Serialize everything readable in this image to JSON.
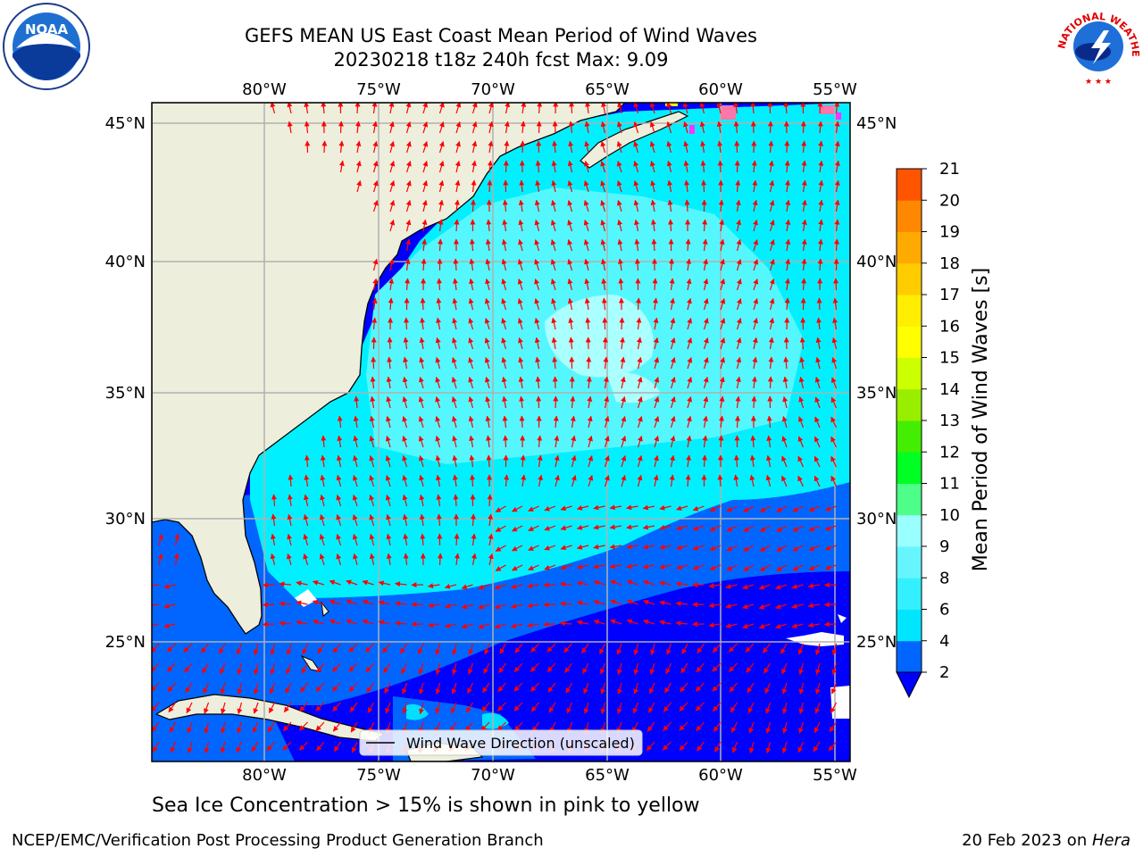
{
  "title_line1": "GEFS MEAN US East Coast Mean Period of Wind Waves",
  "title_line2": "20230218 t18z 240h fcst   Max: 9.09",
  "lon_ticks": [
    "80°W",
    "75°W",
    "70°W",
    "65°W",
    "60°W",
    "55°W"
  ],
  "lat_ticks": [
    "45°N",
    "40°N",
    "35°N",
    "30°N",
    "25°N"
  ],
  "colorbar": {
    "label": "Mean Period of Wind Waves [s]",
    "ticks": [
      "2",
      "4",
      "6",
      "8",
      "9",
      "10",
      "11",
      "12",
      "13",
      "14",
      "15",
      "16",
      "17",
      "18",
      "19",
      "20",
      "21"
    ],
    "colors": [
      "#0066ff",
      "#00e6ff",
      "#33f0ff",
      "#66f5ff",
      "#99ffff",
      "#4dff88",
      "#00ff22",
      "#44ee00",
      "#99ee00",
      "#ccff00",
      "#ffff00",
      "#ffee00",
      "#ffcc00",
      "#ffaa00",
      "#ff8800",
      "#ff5500",
      "#ff2200",
      "#ff0000"
    ],
    "under_color": "#0000ff"
  },
  "legend_label": "Wind Wave Direction (unscaled)",
  "caption": "Sea Ice Concentration > 15% is shown in pink to yellow",
  "footer_left": "NCEP/EMC/Verification Post Processing Product Generation Branch",
  "footer_date": "20 Feb 2023 on ",
  "footer_host": "Hera",
  "logo_left": "NOAA",
  "logo_right_text": "NATIONAL WEATHER SERVICE",
  "colors": {
    "land": "#eeeedd",
    "deep_blue": "#0000ff",
    "mid_blue": "#0066ff",
    "cyan": "#00f0ff",
    "light_cyan": "#66f8ff",
    "pale_cyan": "#aaffff",
    "arrow": "#ff0000"
  }
}
